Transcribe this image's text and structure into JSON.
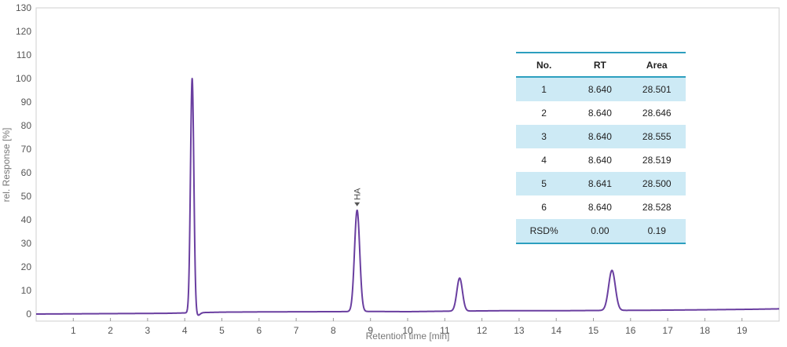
{
  "chart_data": {
    "type": "line",
    "xlabel": "Retention time [min]",
    "ylabel": "rel. Response [%]",
    "xlim": [
      0,
      20
    ],
    "ylim": [
      -3,
      130
    ],
    "x_ticks": [
      1,
      2,
      3,
      4,
      5,
      6,
      7,
      8,
      9,
      10,
      11,
      12,
      13,
      14,
      15,
      16,
      17,
      18,
      19
    ],
    "y_ticks": [
      0,
      10,
      20,
      30,
      40,
      50,
      60,
      70,
      80,
      90,
      100,
      110,
      120,
      130
    ],
    "line_color": "#6a3fa0",
    "baseline_points": [
      [
        0,
        0
      ],
      [
        3.5,
        0.3
      ],
      [
        5,
        0.8
      ],
      [
        6,
        0.9
      ],
      [
        8,
        1.0
      ],
      [
        9,
        1.1
      ],
      [
        10,
        1.0
      ],
      [
        11,
        1.2
      ],
      [
        12.5,
        1.4
      ],
      [
        14,
        1.4
      ],
      [
        15,
        1.5
      ],
      [
        16.5,
        1.6
      ],
      [
        18,
        1.8
      ],
      [
        19.2,
        2.0
      ],
      [
        20,
        2.2
      ]
    ],
    "peaks": [
      {
        "rt": 4.2,
        "height": 99.5,
        "width": 0.045
      },
      {
        "rt": 8.64,
        "height": 43.0,
        "width": 0.07,
        "label": "HA"
      },
      {
        "rt": 11.4,
        "height": 14.0,
        "width": 0.075
      },
      {
        "rt": 15.5,
        "height": 17.0,
        "width": 0.09
      }
    ],
    "table": {
      "headers": [
        "No.",
        "RT",
        "Area"
      ],
      "rows": [
        [
          "1",
          "8.640",
          "28.501"
        ],
        [
          "2",
          "8.640",
          "28.646"
        ],
        [
          "3",
          "8.640",
          "28.555"
        ],
        [
          "4",
          "8.640",
          "28.519"
        ],
        [
          "5",
          "8.641",
          "28.500"
        ],
        [
          "6",
          "8.640",
          "28.528"
        ],
        [
          "RSD%",
          "0.00",
          "0.19"
        ]
      ]
    }
  }
}
